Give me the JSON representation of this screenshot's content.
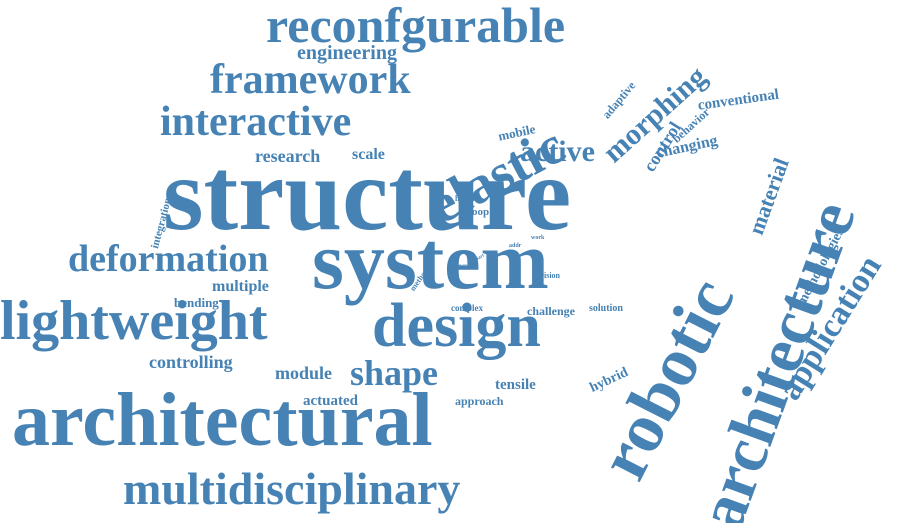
{
  "word_color": "#4682b4",
  "background": "#ffffff",
  "words": [
    {
      "text": "structure"
    },
    {
      "text": "system"
    },
    {
      "text": "architectural"
    },
    {
      "text": "robotic"
    },
    {
      "text": "architecture"
    },
    {
      "text": "design"
    },
    {
      "text": "lightweight"
    },
    {
      "text": "multidisciplinary"
    },
    {
      "text": "elastic"
    },
    {
      "text": "reconfgurable"
    },
    {
      "text": "framework"
    },
    {
      "text": "interactive"
    },
    {
      "text": "deformation"
    },
    {
      "text": "shape"
    },
    {
      "text": "application"
    },
    {
      "text": "morphing"
    },
    {
      "text": "engineering"
    },
    {
      "text": "active"
    },
    {
      "text": "material"
    },
    {
      "text": "control"
    },
    {
      "text": "research"
    },
    {
      "text": "scale"
    },
    {
      "text": "multiple"
    },
    {
      "text": "controlling"
    },
    {
      "text": "module"
    },
    {
      "text": "methodologies"
    },
    {
      "text": "conventional"
    },
    {
      "text": "changing"
    },
    {
      "text": "behavior"
    },
    {
      "text": "adaptive"
    },
    {
      "text": "mobile"
    },
    {
      "text": "integration"
    },
    {
      "text": "bending"
    },
    {
      "text": "hybrid"
    },
    {
      "text": "tensile"
    },
    {
      "text": "actuated"
    },
    {
      "text": "approach"
    },
    {
      "text": "challenge"
    },
    {
      "text": "solution"
    },
    {
      "text": "complex"
    },
    {
      "text": "soft"
    },
    {
      "text": "loop"
    },
    {
      "text": "human"
    },
    {
      "text": "focus"
    },
    {
      "text": "method"
    },
    {
      "text": "vision"
    },
    {
      "text": "work"
    },
    {
      "text": "addr"
    },
    {
      "text": "part"
    }
  ]
}
